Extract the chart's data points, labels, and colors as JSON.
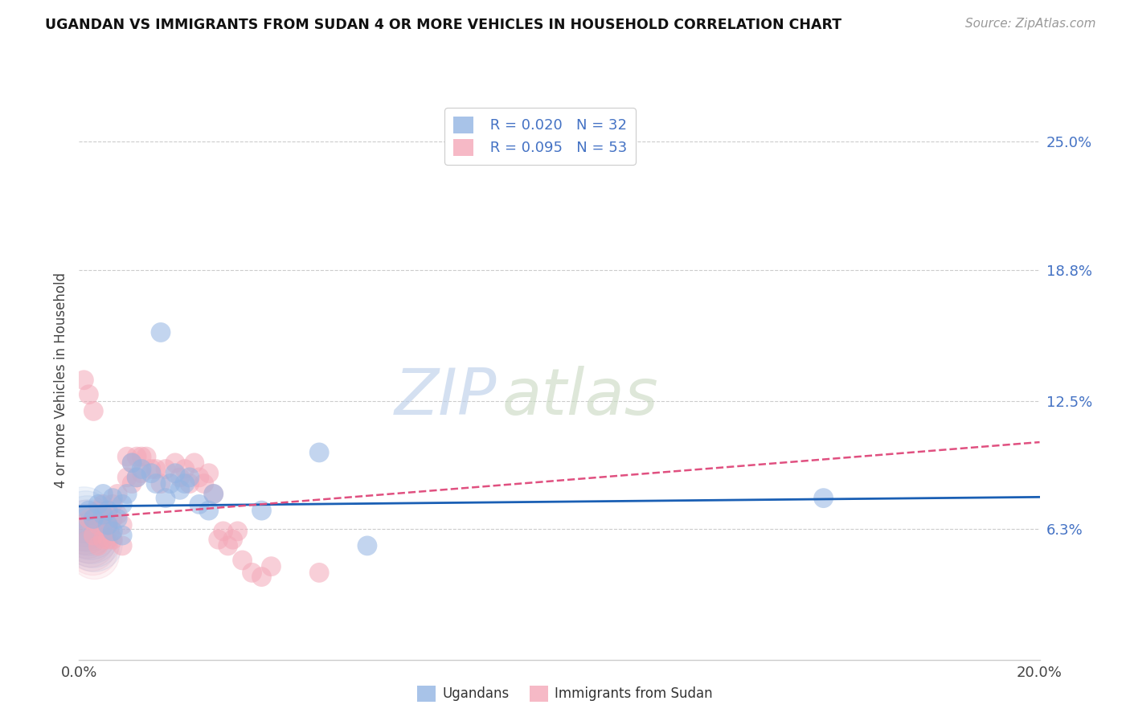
{
  "title": "UGANDAN VS IMMIGRANTS FROM SUDAN 4 OR MORE VEHICLES IN HOUSEHOLD CORRELATION CHART",
  "source": "Source: ZipAtlas.com",
  "ylabel": "4 or more Vehicles in Household",
  "xlim": [
    0.0,
    0.2
  ],
  "ylim": [
    0.0,
    0.27
  ],
  "yticks": [
    0.063,
    0.125,
    0.188,
    0.25
  ],
  "ytick_labels": [
    "6.3%",
    "12.5%",
    "18.8%",
    "25.0%"
  ],
  "legend_r1": "R = 0.020",
  "legend_n1": "N = 32",
  "legend_r2": "R = 0.095",
  "legend_n2": "N = 53",
  "legend1_label": "Ugandans",
  "legend2_label": "Immigrants from Sudan",
  "color_blue": "#92b4e3",
  "color_pink": "#f4a8b8",
  "line_blue": "#1a5fb4",
  "line_pink": "#e05080",
  "watermark_zip": "ZIP",
  "watermark_atlas": "atlas",
  "ugandan_x": [
    0.002,
    0.003,
    0.004,
    0.005,
    0.005,
    0.006,
    0.006,
    0.007,
    0.007,
    0.008,
    0.009,
    0.009,
    0.01,
    0.011,
    0.012,
    0.013,
    0.015,
    0.016,
    0.017,
    0.018,
    0.019,
    0.02,
    0.021,
    0.022,
    0.023,
    0.025,
    0.027,
    0.028,
    0.05,
    0.06,
    0.038,
    0.155
  ],
  "ugandan_y": [
    0.072,
    0.068,
    0.075,
    0.08,
    0.07,
    0.072,
    0.065,
    0.078,
    0.062,
    0.068,
    0.075,
    0.06,
    0.08,
    0.095,
    0.088,
    0.092,
    0.09,
    0.085,
    0.158,
    0.078,
    0.085,
    0.09,
    0.082,
    0.085,
    0.088,
    0.075,
    0.072,
    0.08,
    0.1,
    0.055,
    0.072,
    0.078
  ],
  "sudan_x": [
    0.001,
    0.002,
    0.002,
    0.003,
    0.003,
    0.004,
    0.004,
    0.004,
    0.005,
    0.005,
    0.005,
    0.006,
    0.006,
    0.006,
    0.007,
    0.007,
    0.007,
    0.008,
    0.008,
    0.009,
    0.009,
    0.01,
    0.01,
    0.011,
    0.011,
    0.012,
    0.012,
    0.013,
    0.013,
    0.014,
    0.015,
    0.016,
    0.017,
    0.018,
    0.02,
    0.021,
    0.022,
    0.023,
    0.024,
    0.025,
    0.026,
    0.027,
    0.028,
    0.029,
    0.03,
    0.031,
    0.032,
    0.033,
    0.034,
    0.036,
    0.038,
    0.04,
    0.05
  ],
  "sudan_y": [
    0.135,
    0.128,
    0.068,
    0.12,
    0.06,
    0.072,
    0.065,
    0.055,
    0.075,
    0.068,
    0.058,
    0.072,
    0.065,
    0.058,
    0.075,
    0.068,
    0.058,
    0.08,
    0.07,
    0.065,
    0.055,
    0.098,
    0.088,
    0.095,
    0.085,
    0.098,
    0.088,
    0.098,
    0.09,
    0.098,
    0.092,
    0.092,
    0.085,
    0.092,
    0.095,
    0.088,
    0.092,
    0.085,
    0.095,
    0.088,
    0.085,
    0.09,
    0.08,
    0.058,
    0.062,
    0.055,
    0.058,
    0.062,
    0.048,
    0.042,
    0.04,
    0.045,
    0.042
  ],
  "blue_trend_x": [
    0.0,
    0.2
  ],
  "blue_trend_y": [
    0.074,
    0.0785
  ],
  "pink_trend_x": [
    0.0,
    0.2
  ],
  "pink_trend_y": [
    0.068,
    0.105
  ]
}
